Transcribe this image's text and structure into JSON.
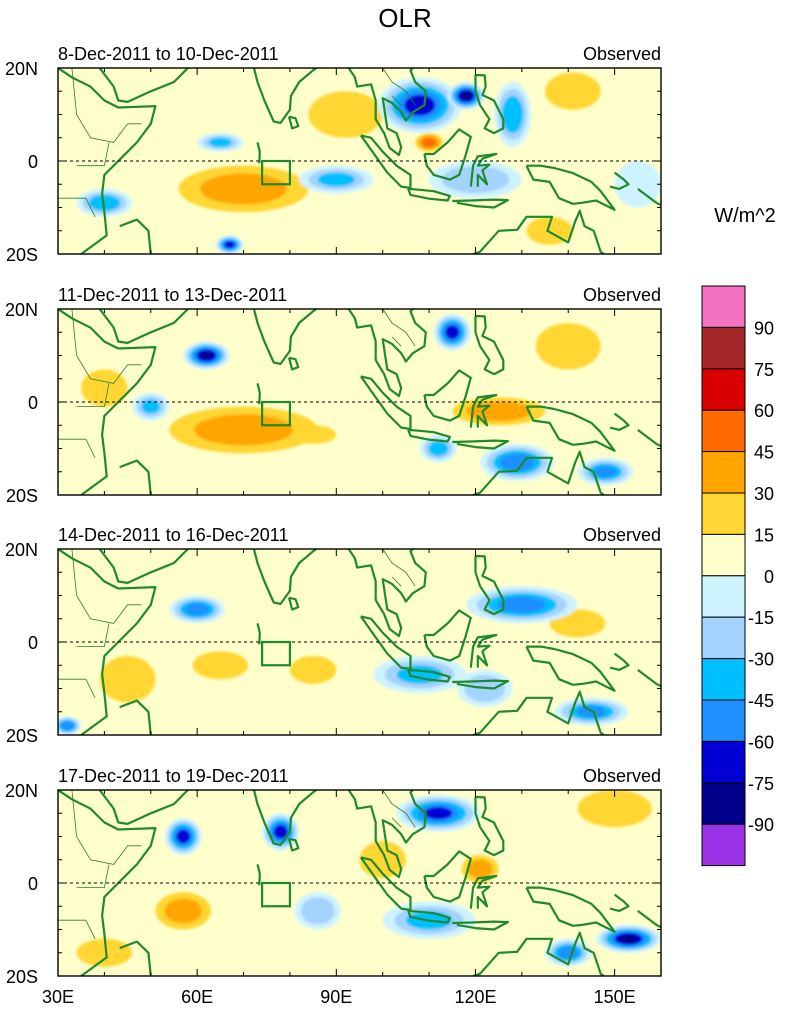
{
  "chart_data": {
    "type": "heatmap",
    "title": "OLR",
    "units": "W/m^2",
    "x_tick_labels": [
      "30E",
      "60E",
      "90E",
      "120E",
      "150E"
    ],
    "x_ticks": [
      30,
      60,
      90,
      120,
      150
    ],
    "xlim": [
      30,
      160
    ],
    "y_tick_labels": [
      "20N",
      "0",
      "20S"
    ],
    "y_ticks": [
      20,
      0,
      -20
    ],
    "ylim": [
      -20,
      20
    ],
    "reference_box": {
      "lon": [
        74,
        80
      ],
      "lat": [
        -5,
        0
      ]
    },
    "colorbar": {
      "labels": [
        "90",
        "75",
        "60",
        "45",
        "30",
        "15",
        "0",
        "-15",
        "-30",
        "-45",
        "-60",
        "-75",
        "-90"
      ],
      "colors": [
        "#f372c2",
        "#a6272a",
        "#d80000",
        "#ff6a00",
        "#ffa500",
        "#ffd633",
        "#ffffcc",
        "#cdf3ff",
        "#a5d3ff",
        "#00bfff",
        "#1e90ff",
        "#0000d4",
        "#00008b",
        "#9a32e6"
      ]
    },
    "panels": [
      {
        "period": "8-Dec-2011 to 10-Dec-2011",
        "label": "Observed",
        "anomalies": [
          {
            "lon": 108,
            "lat": 12,
            "value": -80,
            "rx": 9,
            "ry": 6
          },
          {
            "lon": 118,
            "lat": 14,
            "value": -95,
            "rx": 4,
            "ry": 3
          },
          {
            "lon": 128,
            "lat": 10,
            "value": -55,
            "rx": 4,
            "ry": 7
          },
          {
            "lon": 90,
            "lat": -4,
            "value": -45,
            "rx": 8,
            "ry": 3
          },
          {
            "lon": 120,
            "lat": -4,
            "value": -40,
            "rx": 10,
            "ry": 4
          },
          {
            "lon": 40,
            "lat": -9,
            "value": -55,
            "rx": 6,
            "ry": 3
          },
          {
            "lon": 67,
            "lat": -18,
            "value": -80,
            "rx": 3,
            "ry": 2
          },
          {
            "lon": 65,
            "lat": 4,
            "value": -45,
            "rx": 5,
            "ry": 2
          },
          {
            "lon": 70,
            "lat": -6,
            "value": 30,
            "rx": 14,
            "ry": 5
          },
          {
            "lon": 110,
            "lat": 4,
            "value": 45,
            "rx": 3,
            "ry": 2
          },
          {
            "lon": 141,
            "lat": 15,
            "value": 20,
            "rx": 6,
            "ry": 4
          },
          {
            "lon": 136,
            "lat": -15,
            "value": 25,
            "rx": 5,
            "ry": 3
          },
          {
            "lon": 92,
            "lat": 10,
            "value": 20,
            "rx": 8,
            "ry": 5
          },
          {
            "lon": 155,
            "lat": -5,
            "value": -20,
            "rx": 5,
            "ry": 5
          }
        ]
      },
      {
        "period": "11-Dec-2011 to 13-Dec-2011",
        "label": "Observed",
        "anomalies": [
          {
            "lon": 62,
            "lat": 10,
            "value": -90,
            "rx": 5,
            "ry": 3
          },
          {
            "lon": 115,
            "lat": 15,
            "value": -80,
            "rx": 4,
            "ry": 4
          },
          {
            "lon": 129,
            "lat": -13,
            "value": -70,
            "rx": 8,
            "ry": 4
          },
          {
            "lon": 148,
            "lat": -15,
            "value": -60,
            "rx": 6,
            "ry": 3
          },
          {
            "lon": 112,
            "lat": -10,
            "value": -50,
            "rx": 4,
            "ry": 3
          },
          {
            "lon": 50,
            "lat": -1,
            "value": -45,
            "rx": 4,
            "ry": 3
          },
          {
            "lon": 70,
            "lat": -6,
            "value": 30,
            "rx": 16,
            "ry": 5
          },
          {
            "lon": 85,
            "lat": -7,
            "value": 25,
            "rx": 5,
            "ry": 2
          },
          {
            "lon": 125,
            "lat": -2,
            "value": 35,
            "rx": 10,
            "ry": 3
          },
          {
            "lon": 140,
            "lat": 12,
            "value": 20,
            "rx": 7,
            "ry": 5
          },
          {
            "lon": 40,
            "lat": 3,
            "value": 20,
            "rx": 5,
            "ry": 4
          }
        ]
      },
      {
        "period": "14-Dec-2011 to 16-Dec-2011",
        "label": "Observed",
        "anomalies": [
          {
            "lon": 60,
            "lat": 7,
            "value": -65,
            "rx": 6,
            "ry": 3
          },
          {
            "lon": 130,
            "lat": 8,
            "value": -65,
            "rx": 12,
            "ry": 4
          },
          {
            "lon": 108,
            "lat": -7,
            "value": -45,
            "rx": 10,
            "ry": 4
          },
          {
            "lon": 145,
            "lat": -15,
            "value": -60,
            "rx": 8,
            "ry": 3
          },
          {
            "lon": 32,
            "lat": -18,
            "value": -70,
            "rx": 3,
            "ry": 2
          },
          {
            "lon": 122,
            "lat": -10,
            "value": -40,
            "rx": 6,
            "ry": 4
          },
          {
            "lon": 65,
            "lat": -5,
            "value": 20,
            "rx": 6,
            "ry": 3
          },
          {
            "lon": 85,
            "lat": -6,
            "value": 20,
            "rx": 5,
            "ry": 3
          },
          {
            "lon": 45,
            "lat": -8,
            "value": 20,
            "rx": 6,
            "ry": 5
          },
          {
            "lon": 142,
            "lat": 4,
            "value": 15,
            "rx": 6,
            "ry": 3
          }
        ]
      },
      {
        "period": "17-Dec-2011 to 19-Dec-2011",
        "label": "Observed",
        "anomalies": [
          {
            "lon": 57,
            "lat": 10,
            "value": -80,
            "rx": 4,
            "ry": 4
          },
          {
            "lon": 78,
            "lat": 11,
            "value": -80,
            "rx": 4,
            "ry": 4
          },
          {
            "lon": 112,
            "lat": 15,
            "value": -75,
            "rx": 9,
            "ry": 4
          },
          {
            "lon": 153,
            "lat": -12,
            "value": -90,
            "rx": 7,
            "ry": 3
          },
          {
            "lon": 140,
            "lat": -15,
            "value": -65,
            "rx": 5,
            "ry": 3
          },
          {
            "lon": 110,
            "lat": -8,
            "value": -45,
            "rx": 10,
            "ry": 4
          },
          {
            "lon": 86,
            "lat": -6,
            "value": -40,
            "rx": 5,
            "ry": 4
          },
          {
            "lon": 150,
            "lat": 16,
            "value": 20,
            "rx": 8,
            "ry": 4
          },
          {
            "lon": 121,
            "lat": 3,
            "value": 30,
            "rx": 4,
            "ry": 3
          },
          {
            "lon": 57,
            "lat": -6,
            "value": 30,
            "rx": 6,
            "ry": 4
          },
          {
            "lon": 40,
            "lat": -15,
            "value": 20,
            "rx": 6,
            "ry": 3
          },
          {
            "lon": 100,
            "lat": 5,
            "value": 15,
            "rx": 5,
            "ry": 4
          }
        ]
      }
    ]
  }
}
